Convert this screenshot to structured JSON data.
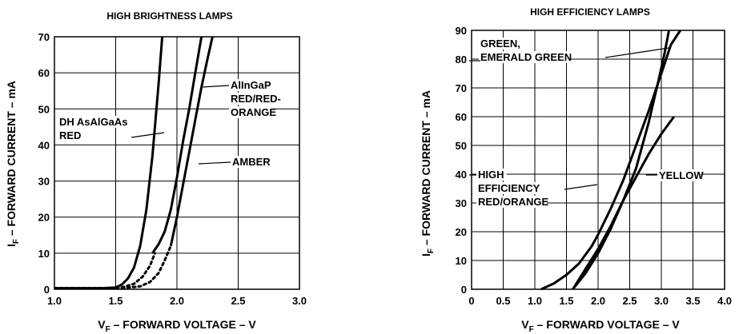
{
  "chart_data": [
    {
      "type": "line",
      "title": "HIGH BRIGHTNESS LAMPS",
      "xlabel_main": "V",
      "xlabel_sub": "F",
      "xlabel_rest": " – FORWARD VOLTAGE – V",
      "ylabel_main": "I",
      "ylabel_sub": "F",
      "ylabel_rest": " – FORWARD CURRENT – mA",
      "xlim": [
        1.0,
        3.0
      ],
      "ylim": [
        0,
        70
      ],
      "xticks": [
        "1.0",
        "1.5",
        "2.0",
        "2.5",
        "3.0"
      ],
      "xtick_values": [
        1.0,
        1.5,
        2.0,
        2.5,
        3.0
      ],
      "yticks": [
        "0",
        "10",
        "20",
        "30",
        "40",
        "50",
        "60",
        "70"
      ],
      "ytick_values": [
        0,
        10,
        20,
        30,
        40,
        50,
        60,
        70
      ],
      "grid": true,
      "series": [
        {
          "name": "DH AsAlGaAs RED",
          "x": [
            1.0,
            1.4,
            1.5,
            1.55,
            1.6,
            1.65,
            1.7,
            1.75,
            1.8,
            1.85,
            1.88
          ],
          "y": [
            0.3,
            0.3,
            0.5,
            1.3,
            3.0,
            6.0,
            12.0,
            22.0,
            37.0,
            57.0,
            70.0
          ]
        },
        {
          "name": "AlInGaP RED/RED-ORANGE",
          "x": [
            1.8,
            1.85,
            1.9,
            1.95,
            2.0,
            2.05,
            2.1,
            2.15,
            2.2
          ],
          "y": [
            10.0,
            12.5,
            16.0,
            22.0,
            31.0,
            41.0,
            50.0,
            60.0,
            70.0
          ]
        },
        {
          "name": "AMBER",
          "x": [
            1.95,
            2.0,
            2.05,
            2.1,
            2.15,
            2.2,
            2.25,
            2.29
          ],
          "y": [
            12.0,
            20.0,
            29.0,
            38.0,
            47.0,
            56.0,
            64.0,
            70.0
          ]
        }
      ],
      "dotted_segments": [
        {
          "x": [
            1.0,
            1.45,
            1.55,
            1.65,
            1.72,
            1.78,
            1.82
          ],
          "y": [
            0.3,
            0.3,
            0.5,
            1.5,
            3.5,
            6.5,
            10.0
          ]
        },
        {
          "x": [
            1.55,
            1.7,
            1.78,
            1.85,
            1.9,
            1.95
          ],
          "y": [
            0.3,
            0.8,
            2.0,
            4.5,
            8.0,
            12.0
          ]
        }
      ],
      "annotations": [
        {
          "lines": [
            "DH AsAlGaAs",
            "RED"
          ]
        },
        {
          "lines": [
            "AlInGaP",
            "RED/RED-",
            "ORANGE"
          ]
        },
        {
          "lines": [
            "AMBER"
          ]
        }
      ]
    },
    {
      "type": "line",
      "title": "HIGH EFFICIENCY LAMPS",
      "xlabel_main": "V",
      "xlabel_sub": "F",
      "xlabel_rest": " – FORWARD VOLTAGE – V",
      "ylabel_main": "I",
      "ylabel_sub": "F",
      "ylabel_rest": " – FORWARD CURRENT – mA",
      "xlim": [
        0,
        4.0
      ],
      "ylim": [
        0,
        90
      ],
      "xticks": [
        "0",
        "0.5",
        "1.0",
        "1.5",
        "2.0",
        "2.5",
        "3.0",
        "3.5",
        "4.0"
      ],
      "xtick_values": [
        0,
        0.5,
        1.0,
        1.5,
        2.0,
        2.5,
        3.0,
        3.5,
        4.0
      ],
      "yticks": [
        "0",
        "10",
        "20",
        "30",
        "40",
        "50",
        "60",
        "70",
        "80",
        "90"
      ],
      "ytick_values": [
        0,
        10,
        20,
        30,
        40,
        50,
        60,
        70,
        80,
        90
      ],
      "grid": true,
      "series": [
        {
          "name": "HIGH EFFICIENCY RED/ORANGE",
          "x": [
            1.1,
            1.3,
            1.5,
            1.7,
            1.9,
            2.0,
            2.2,
            2.4,
            2.6,
            2.8,
            3.0,
            3.15,
            3.3
          ],
          "y": [
            0,
            2.0,
            5.0,
            9.0,
            15.0,
            19.0,
            28.0,
            38.0,
            50.0,
            62.0,
            75.0,
            85.0,
            90.0
          ]
        },
        {
          "name": "YELLOW",
          "x": [
            1.6,
            1.8,
            2.0,
            2.2,
            2.4,
            2.6,
            2.8,
            3.0,
            3.2
          ],
          "y": [
            0,
            7.0,
            14.0,
            22.0,
            31.0,
            39.0,
            47.0,
            54.0,
            60.0
          ]
        },
        {
          "name": "GREEN, EMERALD GREEN",
          "x": [
            1.6,
            1.8,
            2.0,
            2.2,
            2.4,
            2.6,
            2.8,
            2.95,
            3.05,
            3.12
          ],
          "y": [
            0,
            5.5,
            12.5,
            21.0,
            31.0,
            42.0,
            58.0,
            72.0,
            82.0,
            90.0
          ]
        }
      ],
      "annotations": [
        {
          "lines": [
            "GREEN,",
            "EMERALD GREEN"
          ]
        },
        {
          "lines": [
            "HIGH",
            "EFFICIENCY",
            "RED/ORANGE"
          ]
        },
        {
          "lines": [
            "YELLOW"
          ]
        }
      ]
    }
  ]
}
